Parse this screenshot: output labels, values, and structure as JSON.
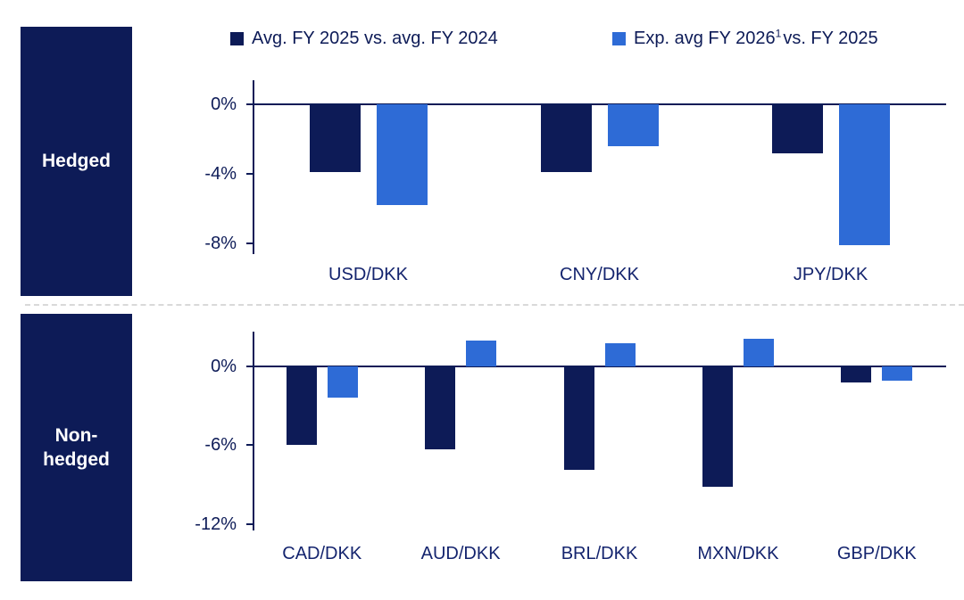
{
  "legend": {
    "series1": {
      "label": "Avg. FY 2025 vs. avg. FY 2024",
      "color": "#0d1b57"
    },
    "series2": {
      "label_pre": "Exp. avg FY 2026",
      "superscript": "1",
      "label_post": "vs. FY 2025",
      "color": "#2e6bd6"
    }
  },
  "panels": {
    "hedged": {
      "label": "Hedged"
    },
    "non_hedged": {
      "label": "Non-hedged"
    }
  },
  "chart_data": [
    {
      "type": "bar",
      "panel": "Hedged",
      "categories": [
        "USD/DKK",
        "CNY/DKK",
        "JPY/DKK"
      ],
      "series": [
        {
          "name": "Avg. FY 2025 vs. avg. FY 2024",
          "color": "#0d1b57",
          "values": [
            -3.9,
            -3.9,
            -2.8
          ]
        },
        {
          "name": "Exp. avg FY 2026 vs. FY 2025",
          "color": "#2e6bd6",
          "values": [
            -5.8,
            -2.4,
            -8.1
          ]
        }
      ],
      "yticks": [
        0,
        -4,
        -8
      ],
      "ytick_labels": [
        "0%",
        "-4%",
        "-8%"
      ],
      "ylim": [
        -8.6,
        1.4
      ],
      "grid": false,
      "legend_position": "top"
    },
    {
      "type": "bar",
      "panel": "Non-hedged",
      "categories": [
        "CAD/DKK",
        "AUD/DKK",
        "BRL/DKK",
        "MXN/DKK",
        "GBP/DKK"
      ],
      "series": [
        {
          "name": "Avg. FY 2025 vs. avg. FY 2024",
          "color": "#0d1b57",
          "values": [
            -6.0,
            -6.3,
            -7.9,
            -9.2,
            -1.2
          ]
        },
        {
          "name": "Exp. avg FY 2026 vs. FY 2025",
          "color": "#2e6bd6",
          "values": [
            -2.4,
            2.0,
            1.8,
            2.1,
            -1.1
          ]
        }
      ],
      "yticks": [
        0,
        -6,
        -12
      ],
      "ytick_labels": [
        "0%",
        "-6%",
        "-12%"
      ],
      "ylim": [
        -12.5,
        2.65
      ],
      "grid": false,
      "legend_position": "top"
    }
  ]
}
